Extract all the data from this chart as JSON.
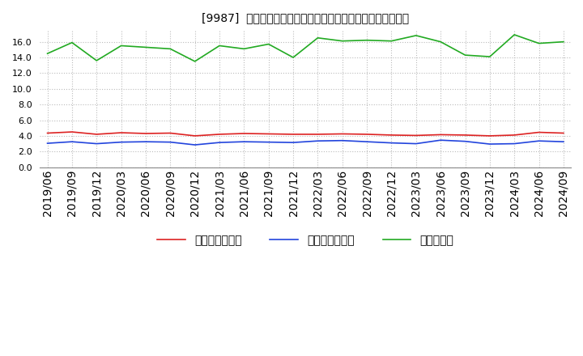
{
  "title": "[9987]  売上債権回転率、買入債務回転率、在庫回転率の推移",
  "x_labels": [
    "2019/06",
    "2019/09",
    "2019/12",
    "2020/03",
    "2020/06",
    "2020/09",
    "2020/12",
    "2021/03",
    "2021/06",
    "2021/09",
    "2021/12",
    "2022/03",
    "2022/06",
    "2022/09",
    "2022/12",
    "2023/03",
    "2023/06",
    "2023/09",
    "2023/12",
    "2024/03",
    "2024/06",
    "2024/09"
  ],
  "売上債権回転率": [
    4.35,
    4.5,
    4.2,
    4.4,
    4.3,
    4.35,
    4.0,
    4.2,
    4.3,
    4.25,
    4.2,
    4.2,
    4.25,
    4.2,
    4.1,
    4.05,
    4.15,
    4.1,
    4.0,
    4.1,
    4.45,
    4.35
  ],
  "買入債務回転率": [
    3.05,
    3.25,
    3.0,
    3.2,
    3.25,
    3.2,
    2.85,
    3.15,
    3.25,
    3.2,
    3.15,
    3.35,
    3.4,
    3.25,
    3.1,
    3.0,
    3.45,
    3.3,
    2.95,
    3.0,
    3.35,
    3.25
  ],
  "在庫回転率": [
    14.5,
    15.9,
    13.6,
    15.5,
    15.3,
    15.1,
    13.5,
    15.5,
    15.1,
    15.7,
    14.0,
    16.5,
    16.1,
    16.2,
    16.1,
    16.8,
    16.0,
    14.3,
    14.1,
    16.9,
    15.8,
    16.0
  ],
  "line_colors": {
    "売上債権回転率": "#dd2222",
    "買入債務回転率": "#2244dd",
    "在庫回転率": "#22aa22"
  },
  "ylim": [
    0.0,
    17.5
  ],
  "yticks": [
    0.0,
    2.0,
    4.0,
    6.0,
    8.0,
    10.0,
    12.0,
    14.0,
    16.0
  ],
  "background_color": "#ffffff",
  "grid_color": "#bbbbbb",
  "title_fontsize": 10,
  "legend_labels": [
    "売上債権回転率",
    "買入債務回転率",
    "在庫回転率"
  ]
}
